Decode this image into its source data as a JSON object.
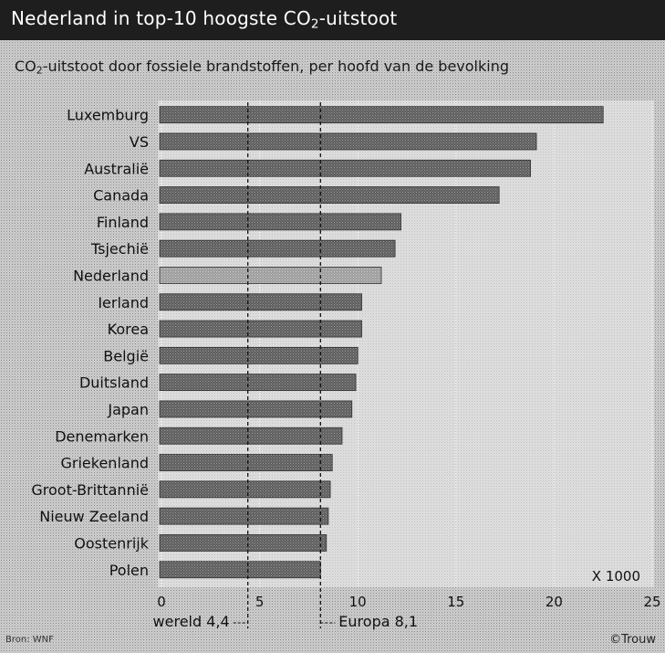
{
  "header": {
    "title_pre": "Nederland in top-10 hoogste CO",
    "title_sub": "2",
    "title_post": "-uitstoot"
  },
  "subtitle": {
    "pre": "CO",
    "sub": "2",
    "post": "-uitstoot door fossiele brandstoffen, per hoofd van de bevolking"
  },
  "footer": {
    "source": "Bron: WNF",
    "credit": "©Trouw"
  },
  "colors": {
    "title_bar": "#1e1e1e",
    "bar_fill": "#6e6e6e",
    "bar_highlight": "#a8a8a8",
    "background": "#dcdcdc"
  },
  "chart_data": {
    "type": "bar",
    "orientation": "horizontal",
    "categories": [
      "Luxemburg",
      "VS",
      "Australië",
      "Canada",
      "Finland",
      "Tsjechië",
      "Nederland",
      "Ierland",
      "Korea",
      "België",
      "Duitsland",
      "Japan",
      "Denemarken",
      "Griekenland",
      "Groot-Brittannië",
      "Nieuw Zeeland",
      "Oostenrijk",
      "Polen"
    ],
    "values": [
      22.5,
      19.1,
      18.8,
      17.2,
      12.2,
      11.9,
      11.2,
      10.2,
      10.2,
      10.0,
      9.9,
      9.7,
      9.2,
      8.7,
      8.6,
      8.5,
      8.4,
      8.1
    ],
    "highlight": "Nederland",
    "xlim": [
      0,
      25
    ],
    "xticks": [
      0,
      5,
      10,
      15,
      20,
      25
    ],
    "x_unit": "X 1000",
    "grid": true,
    "reference_lines": [
      {
        "label": "wereld 4,4",
        "value": 4.4
      },
      {
        "label": "Europa 8,1",
        "value": 8.1
      }
    ]
  }
}
